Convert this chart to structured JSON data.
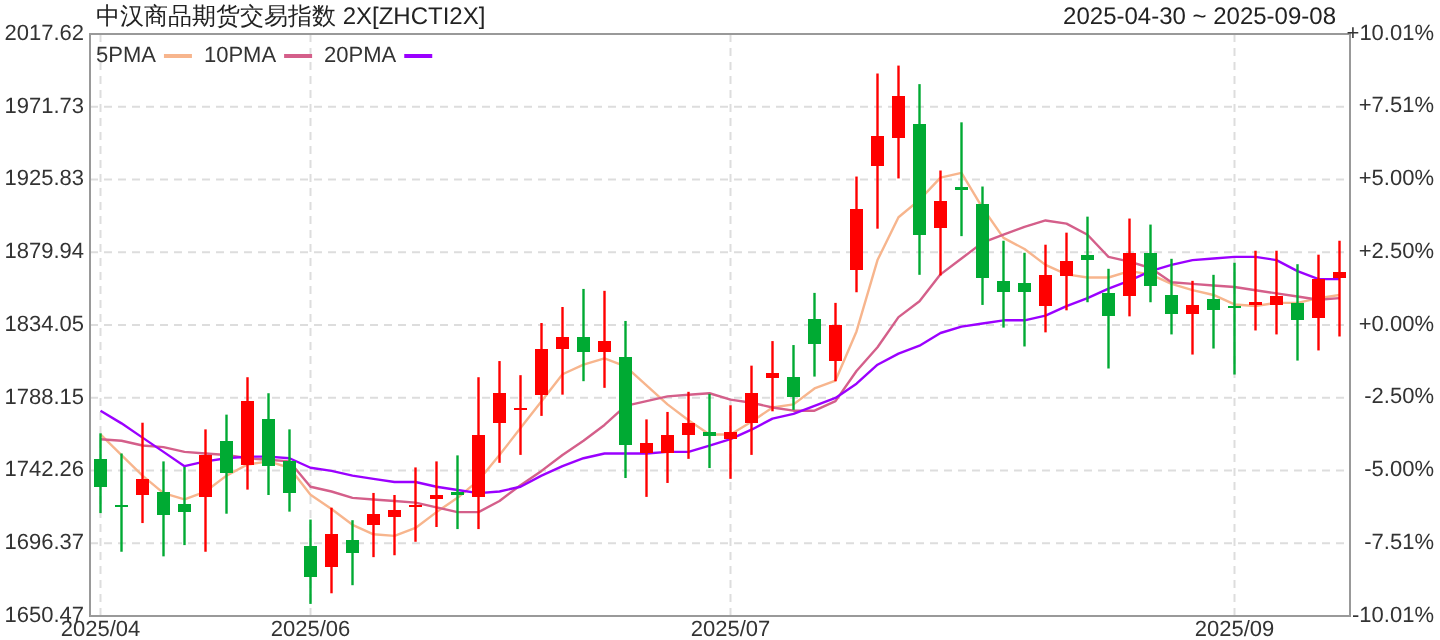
{
  "chart_data": {
    "type": "candlestick",
    "title": "中汉商品期货交易指数 2X[ZHCTI2X]",
    "subtitle": "2025-04-30 ~ 2025-09-08",
    "categories": [
      "2025/04",
      null,
      null,
      null,
      null,
      null,
      null,
      null,
      null,
      null,
      "2025/06",
      null,
      null,
      null,
      null,
      null,
      null,
      null,
      null,
      null,
      null,
      null,
      null,
      null,
      null,
      null,
      null,
      null,
      null,
      null,
      "2025/07",
      null,
      null,
      null,
      null,
      null,
      null,
      null,
      null,
      null,
      null,
      null,
      null,
      null,
      null,
      null,
      null,
      null,
      null,
      null,
      null,
      null,
      null,
      null,
      "2025/09",
      null,
      null,
      null,
      null,
      null
    ],
    "ohlc": [
      [
        1749.2,
        1765.7,
        1715.4,
        1731.9
      ],
      [
        1719.9,
        1753.0,
        1691.0,
        1719.5
      ],
      [
        1726.8,
        1772.4,
        1709.1,
        1736.6
      ],
      [
        1729.0,
        1748.0,
        1688.1,
        1714.2
      ],
      [
        1721.4,
        1744.5,
        1695.2,
        1716.3
      ],
      [
        1725.6,
        1768.2,
        1691.0,
        1751.8
      ],
      [
        1760.6,
        1777.5,
        1715.0,
        1740.7
      ],
      [
        1745.8,
        1801.1,
        1730.2,
        1785.9
      ],
      [
        1774.5,
        1791.0,
        1726.8,
        1745.1
      ],
      [
        1748.0,
        1768.2,
        1716.3,
        1728.1
      ],
      [
        1694.8,
        1711.3,
        1658.1,
        1674.9
      ],
      [
        1681.2,
        1718.8,
        1664.8,
        1702.4
      ],
      [
        1698.6,
        1710.9,
        1669.9,
        1690.1
      ],
      [
        1707.8,
        1728.1,
        1687.6,
        1715.0
      ],
      [
        1712.9,
        1726.8,
        1688.8,
        1717.6
      ],
      [
        1719.5,
        1744.2,
        1697.3,
        1719.9
      ],
      [
        1724.3,
        1748.0,
        1706.6,
        1726.8
      ],
      [
        1729.0,
        1751.8,
        1705.3,
        1726.8
      ],
      [
        1725.6,
        1801.1,
        1705.3,
        1764.4
      ],
      [
        1772.4,
        1811.3,
        1747.1,
        1791.0
      ],
      [
        1780.5,
        1802.4,
        1752.1,
        1781.8
      ],
      [
        1790.1,
        1835.3,
        1776.7,
        1818.9
      ],
      [
        1819.2,
        1845.4,
        1790.1,
        1826.5
      ],
      [
        1826.5,
        1856.8,
        1798.6,
        1816.7
      ],
      [
        1816.7,
        1855.6,
        1794.4,
        1823.9
      ],
      [
        1813.8,
        1836.6,
        1737.5,
        1758.5
      ],
      [
        1753.4,
        1774.5,
        1725.6,
        1759.4
      ],
      [
        1753.0,
        1779.2,
        1734.4,
        1764.4
      ],
      [
        1764.8,
        1791.9,
        1749.6,
        1772.0
      ],
      [
        1766.6,
        1790.6,
        1743.8,
        1764.0
      ],
      [
        1762.3,
        1783.4,
        1737.0,
        1766.6
      ],
      [
        1772.4,
        1808.4,
        1752.1,
        1791.0
      ],
      [
        1800.3,
        1823.9,
        1779.6,
        1803.7
      ],
      [
        1801.1,
        1821.4,
        1780.5,
        1788.5
      ],
      [
        1837.8,
        1854.3,
        1801.5,
        1821.8
      ],
      [
        1811.6,
        1848.0,
        1798.6,
        1834.1
      ],
      [
        1868.6,
        1927.7,
        1854.7,
        1907.5
      ],
      [
        1934.4,
        1992.7,
        1894.8,
        1953.1
      ],
      [
        1952.2,
        1997.7,
        1926.5,
        1978.4
      ],
      [
        1960.7,
        1986.0,
        1865.7,
        1891.0
      ],
      [
        1895.2,
        1931.5,
        1865.3,
        1912.5
      ],
      [
        1920.3,
        1961.9,
        1890.1,
        1920.1
      ],
      [
        1910.4,
        1921.4,
        1846.7,
        1863.6
      ],
      [
        1861.9,
        1887.2,
        1832.4,
        1854.7
      ],
      [
        1860.6,
        1879.6,
        1820.5,
        1854.7
      ],
      [
        1845.8,
        1884.7,
        1829.4,
        1865.7
      ],
      [
        1864.8,
        1892.3,
        1843.3,
        1874.6
      ],
      [
        1878.4,
        1902.4,
        1848.4,
        1874.9
      ],
      [
        1854.3,
        1869.5,
        1806.6,
        1839.5
      ],
      [
        1852.2,
        1901.2,
        1839.5,
        1879.6
      ],
      [
        1879.6,
        1897.4,
        1848.4,
        1858.5
      ],
      [
        1853.0,
        1875.8,
        1828.1,
        1840.8
      ],
      [
        1840.8,
        1861.9,
        1815.4,
        1846.7
      ],
      [
        1850.5,
        1865.7,
        1819.2,
        1843.3
      ],
      [
        1845.6,
        1873.3,
        1802.8,
        1845.4
      ],
      [
        1847.1,
        1880.9,
        1830.6,
        1848.0
      ],
      [
        1846.7,
        1880.9,
        1828.1,
        1852.2
      ],
      [
        1848.0,
        1872.4,
        1811.6,
        1837.0
      ],
      [
        1838.2,
        1878.4,
        1818.0,
        1863.2
      ],
      [
        1863.9,
        1887.2,
        1826.8,
        1867.7
      ]
    ],
    "series": [
      {
        "name": "5PMA",
        "type": "line",
        "color": "#f7b58d",
        "values": [
          1765,
          1752,
          1739,
          1728,
          1724,
          1729,
          1739,
          1746,
          1748,
          1744,
          1727,
          1718,
          1708,
          1702,
          1701,
          1706,
          1716,
          1725,
          1736,
          1752,
          1769,
          1786,
          1803,
          1809,
          1813,
          1808,
          1796,
          1784,
          1774,
          1765,
          1765,
          1773,
          1782,
          1784,
          1794,
          1799,
          1830,
          1875,
          1902,
          1913,
          1927,
          1930,
          1908,
          1889,
          1882,
          1872,
          1866,
          1864,
          1864,
          1868,
          1866,
          1860,
          1856,
          1853,
          1847,
          1846,
          1848,
          1848,
          1851,
          1853
        ]
      },
      {
        "name": "10PMA",
        "type": "line",
        "color": "#d45f8a",
        "values": [
          1762,
          1761,
          1758,
          1757,
          1754,
          1753,
          1752,
          1750,
          1749,
          1748,
          1732,
          1729,
          1725,
          1724,
          1723,
          1722,
          1719,
          1716,
          1716,
          1723,
          1733,
          1742,
          1752,
          1761,
          1771,
          1783,
          1786,
          1789,
          1790,
          1791,
          1787,
          1785,
          1782,
          1780,
          1780,
          1786,
          1805,
          1820,
          1839,
          1849,
          1866,
          1876,
          1886,
          1891,
          1896,
          1900,
          1898,
          1891,
          1877,
          1874,
          1870,
          1861,
          1860,
          1859,
          1858,
          1856,
          1854,
          1852,
          1850,
          1851
        ]
      },
      {
        "name": "20PMA",
        "type": "line",
        "color": "#9b00ff",
        "values": [
          1780,
          1772,
          1763,
          1754,
          1745,
          1748,
          1750,
          1751,
          1751,
          1750,
          1744,
          1742,
          1739,
          1737,
          1735,
          1735,
          1732,
          1730,
          1728,
          1729,
          1732,
          1739,
          1745,
          1750,
          1753,
          1753,
          1753,
          1754,
          1754,
          1758,
          1762,
          1768,
          1775,
          1778,
          1783,
          1788,
          1797,
          1809,
          1816,
          1821,
          1829,
          1833,
          1835,
          1837,
          1837,
          1840,
          1846,
          1851,
          1857,
          1862,
          1868,
          1872,
          1875,
          1876,
          1877,
          1877,
          1875,
          1868,
          1863,
          1863
        ]
      }
    ],
    "ylim": [
      1650.47,
      2017.62
    ],
    "yticks": [
      1650.47,
      1696.37,
      1742.26,
      1788.15,
      1834.05,
      1879.94,
      1925.83,
      1971.73,
      2017.62
    ],
    "y2lim": [
      -10.01,
      10.01
    ],
    "y2ticks": [
      {
        "value": -10.01,
        "label": "-10.01%"
      },
      {
        "value": -7.51,
        "label": "-7.51%"
      },
      {
        "value": -5.0,
        "label": "-5.00%"
      },
      {
        "value": -2.5,
        "label": "-2.50%"
      },
      {
        "value": 0,
        "label": "+0.00%"
      },
      {
        "value": 2.5,
        "label": "+2.50%"
      },
      {
        "value": 5.0,
        "label": "+5.00%"
      },
      {
        "value": 7.51,
        "label": "+7.51%"
      },
      {
        "value": 10.01,
        "label": "+10.01%"
      }
    ],
    "grid": true,
    "legend": "top left"
  }
}
